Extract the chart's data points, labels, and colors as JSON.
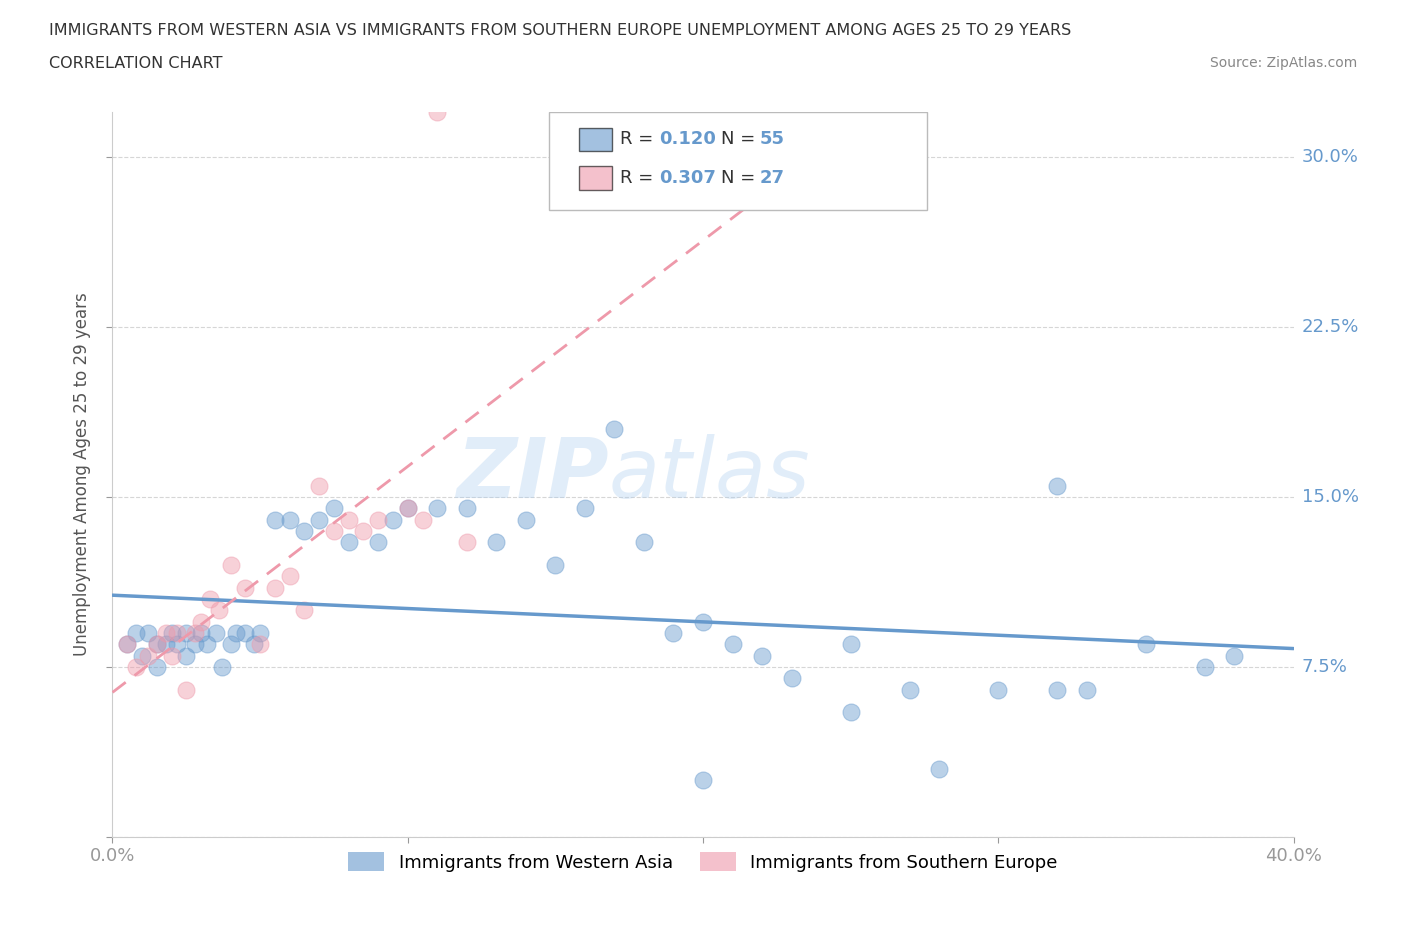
{
  "title_line1": "IMMIGRANTS FROM WESTERN ASIA VS IMMIGRANTS FROM SOUTHERN EUROPE UNEMPLOYMENT AMONG AGES 25 TO 29 YEARS",
  "title_line2": "CORRELATION CHART",
  "source_text": "Source: ZipAtlas.com",
  "ylabel": "Unemployment Among Ages 25 to 29 years",
  "xlim": [
    0.0,
    0.4
  ],
  "ylim": [
    0.0,
    0.32
  ],
  "xticks": [
    0.0,
    0.1,
    0.2,
    0.3,
    0.4
  ],
  "yticks": [
    0.0,
    0.075,
    0.15,
    0.225,
    0.3
  ],
  "ytick_labels": [
    "",
    "7.5%",
    "15.0%",
    "22.5%",
    "30.0%"
  ],
  "blue_color": "#6699CC",
  "pink_color": "#EE99AA",
  "blue_R": "0.120",
  "blue_N": "55",
  "pink_R": "0.307",
  "pink_N": "27",
  "watermark_zip": "ZIP",
  "watermark_atlas": "atlas",
  "legend_label_blue": "Immigrants from Western Asia",
  "legend_label_pink": "Immigrants from Southern Europe",
  "blue_scatter_x": [
    0.005,
    0.008,
    0.01,
    0.012,
    0.015,
    0.015,
    0.018,
    0.02,
    0.022,
    0.025,
    0.025,
    0.028,
    0.03,
    0.032,
    0.035,
    0.037,
    0.04,
    0.042,
    0.045,
    0.048,
    0.05,
    0.055,
    0.06,
    0.065,
    0.07,
    0.075,
    0.08,
    0.09,
    0.095,
    0.1,
    0.11,
    0.12,
    0.13,
    0.14,
    0.15,
    0.16,
    0.17,
    0.18,
    0.19,
    0.2,
    0.21,
    0.22,
    0.23,
    0.25,
    0.27,
    0.28,
    0.3,
    0.32,
    0.33,
    0.35,
    0.37,
    0.2,
    0.25,
    0.32,
    0.38
  ],
  "blue_scatter_y": [
    0.085,
    0.09,
    0.08,
    0.09,
    0.085,
    0.075,
    0.085,
    0.09,
    0.085,
    0.09,
    0.08,
    0.085,
    0.09,
    0.085,
    0.09,
    0.075,
    0.085,
    0.09,
    0.09,
    0.085,
    0.09,
    0.14,
    0.14,
    0.135,
    0.14,
    0.145,
    0.13,
    0.13,
    0.14,
    0.145,
    0.145,
    0.145,
    0.13,
    0.14,
    0.12,
    0.145,
    0.18,
    0.13,
    0.09,
    0.095,
    0.085,
    0.08,
    0.07,
    0.085,
    0.065,
    0.03,
    0.065,
    0.155,
    0.065,
    0.085,
    0.075,
    0.025,
    0.055,
    0.065,
    0.08
  ],
  "pink_scatter_x": [
    0.005,
    0.008,
    0.012,
    0.015,
    0.018,
    0.02,
    0.022,
    0.025,
    0.028,
    0.03,
    0.033,
    0.036,
    0.04,
    0.045,
    0.05,
    0.055,
    0.06,
    0.065,
    0.07,
    0.075,
    0.08,
    0.085,
    0.09,
    0.1,
    0.105,
    0.11,
    0.12
  ],
  "pink_scatter_y": [
    0.085,
    0.075,
    0.08,
    0.085,
    0.09,
    0.08,
    0.09,
    0.065,
    0.09,
    0.095,
    0.105,
    0.1,
    0.12,
    0.11,
    0.085,
    0.11,
    0.115,
    0.1,
    0.155,
    0.135,
    0.14,
    0.135,
    0.14,
    0.145,
    0.14,
    0.32,
    0.13
  ],
  "background_color": "#FFFFFF",
  "grid_color": "#CCCCCC"
}
